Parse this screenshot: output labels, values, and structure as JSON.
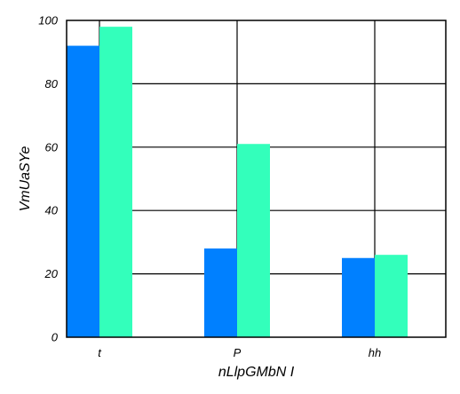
{
  "chart_data": {
    "type": "bar",
    "title": "",
    "xlabel": "nLlpGMbN  I",
    "ylabel": "VmUaSYe",
    "categories": [
      "t",
      "P",
      "hh"
    ],
    "series": [
      {
        "color": "#0080ff",
        "values": [
          92,
          28,
          25
        ]
      },
      {
        "color": "#33ffbb",
        "values": [
          98,
          61,
          26
        ]
      }
    ],
    "ylim": [
      0,
      100
    ],
    "yticks": [
      0,
      20,
      40,
      60,
      80,
      100
    ],
    "grid": true,
    "legend": "none"
  }
}
